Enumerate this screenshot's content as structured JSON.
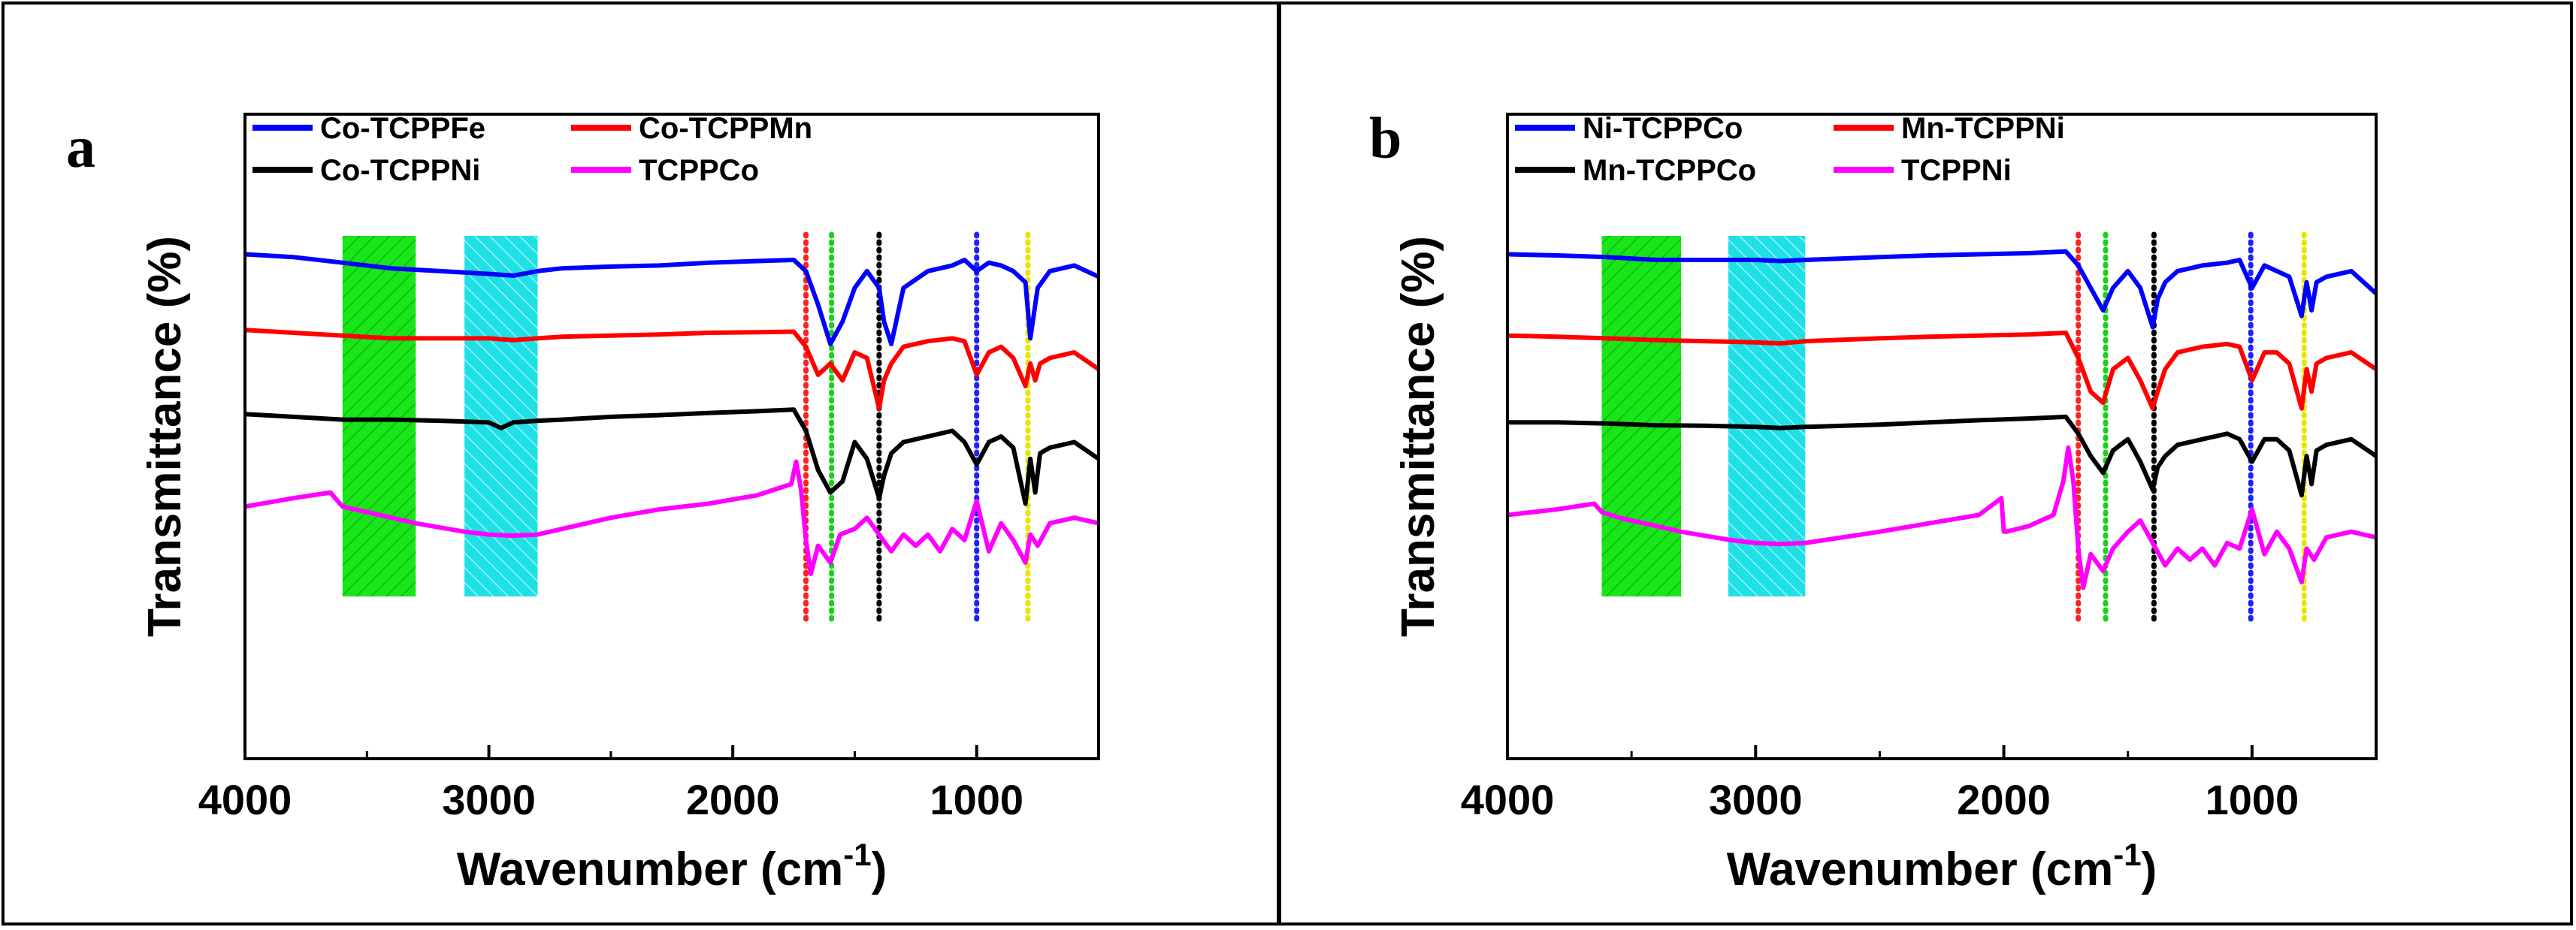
{
  "chart_data": [
    {
      "type": "line",
      "panel_label": "a",
      "xlabel": "Wavenumber (cm",
      "xlabel_sup": "-1",
      "xlabel_close": ")",
      "ylabel": "Transmittance (%)",
      "xlim": [
        4000,
        500
      ],
      "x_reversed": true,
      "xticks": [
        4000,
        3000,
        2000,
        1000
      ],
      "xtick_labels": [
        "4000",
        "3000",
        "2000",
        "1000"
      ],
      "yticks_shown": false,
      "legend_position": "top-left",
      "legend": [
        "Co-TCPPFe",
        "Co-TCPPMn",
        "Co-TCPPNi",
        "TCPPCo"
      ],
      "bands": [
        {
          "from": 3600,
          "to": 3300,
          "color": "#19e619",
          "hatched": true
        },
        {
          "from": 3100,
          "to": 2800,
          "color": "#1ee0e6",
          "hatched": true
        }
      ],
      "ref_lines": [
        {
          "x": 1700,
          "color": "#ff2020"
        },
        {
          "x": 1595,
          "color": "#19d119"
        },
        {
          "x": 1400,
          "color": "#000000"
        },
        {
          "x": 1000,
          "color": "#2020ff"
        },
        {
          "x": 790,
          "color": "#e6e600"
        }
      ],
      "series": [
        {
          "name": "Co-TCPPFe",
          "color": "#0000ff",
          "offset": 9.0,
          "x": [
            4000,
            3800,
            3600,
            3400,
            3200,
            3000,
            2900,
            2800,
            2700,
            2500,
            2300,
            2100,
            1900,
            1750,
            1700,
            1650,
            1600,
            1550,
            1500,
            1450,
            1400,
            1380,
            1350,
            1300,
            1200,
            1100,
            1050,
            1000,
            950,
            900,
            850,
            800,
            780,
            750,
            700,
            600,
            500
          ],
          "y": [
            0,
            0.05,
            0.15,
            0.25,
            0.3,
            0.35,
            0.38,
            0.3,
            0.25,
            0.22,
            0.2,
            0.15,
            0.12,
            0.1,
            0.3,
            0.9,
            1.6,
            1.2,
            0.6,
            0.3,
            0.6,
            1.2,
            1.6,
            0.6,
            0.3,
            0.2,
            0.1,
            0.3,
            0.15,
            0.2,
            0.3,
            0.5,
            1.5,
            0.6,
            0.3,
            0.2,
            0.4
          ]
        },
        {
          "name": "Co-TCPPMn",
          "color": "#ff0000",
          "offset": 7.65,
          "x": [
            4000,
            3800,
            3600,
            3400,
            3200,
            3000,
            2900,
            2800,
            2700,
            2500,
            2300,
            2100,
            1900,
            1750,
            1700,
            1650,
            1600,
            1550,
            1500,
            1450,
            1400,
            1380,
            1350,
            1300,
            1200,
            1100,
            1050,
            1000,
            950,
            900,
            850,
            800,
            780,
            760,
            740,
            700,
            600,
            500
          ],
          "y": [
            0,
            0.05,
            0.1,
            0.15,
            0.15,
            0.15,
            0.18,
            0.15,
            0.12,
            0.1,
            0.08,
            0.05,
            0.04,
            0.03,
            0.3,
            0.8,
            0.6,
            0.9,
            0.4,
            0.5,
            1.4,
            0.9,
            0.6,
            0.3,
            0.2,
            0.15,
            0.2,
            0.8,
            0.4,
            0.3,
            0.5,
            1.0,
            0.6,
            0.9,
            0.6,
            0.5,
            0.4,
            0.7
          ]
        },
        {
          "name": "Co-TCPPNi",
          "color": "#000000",
          "offset": 6.15,
          "x": [
            4000,
            3800,
            3600,
            3400,
            3200,
            3000,
            2950,
            2900,
            2800,
            2700,
            2500,
            2300,
            2100,
            1900,
            1750,
            1700,
            1650,
            1600,
            1550,
            1500,
            1450,
            1400,
            1380,
            1350,
            1300,
            1200,
            1100,
            1050,
            1000,
            950,
            900,
            850,
            800,
            780,
            760,
            740,
            700,
            600,
            500
          ],
          "y": [
            0,
            0.05,
            0.1,
            0.1,
            0.12,
            0.15,
            0.25,
            0.15,
            0.12,
            0.1,
            0.05,
            0.02,
            -0.02,
            -0.05,
            -0.08,
            0.3,
            1.0,
            1.4,
            1.2,
            0.5,
            0.8,
            1.5,
            1.1,
            0.7,
            0.5,
            0.4,
            0.3,
            0.5,
            0.9,
            0.5,
            0.4,
            0.6,
            1.6,
            0.8,
            1.4,
            0.7,
            0.6,
            0.5,
            0.8
          ]
        },
        {
          "name": "TCPPCo",
          "color": "#ff00ff",
          "offset": 4.5,
          "x": [
            4000,
            3800,
            3650,
            3600,
            3500,
            3300,
            3100,
            3000,
            2900,
            2800,
            2700,
            2500,
            2300,
            2100,
            1900,
            1760,
            1740,
            1720,
            1700,
            1680,
            1650,
            1600,
            1560,
            1500,
            1450,
            1400,
            1350,
            1300,
            1250,
            1200,
            1150,
            1100,
            1050,
            1000,
            950,
            900,
            850,
            800,
            780,
            750,
            700,
            600,
            500
          ],
          "y": [
            0,
            -0.15,
            -0.25,
            0.0,
            0.1,
            0.3,
            0.45,
            0.5,
            0.52,
            0.5,
            0.4,
            0.2,
            0.05,
            -0.05,
            -0.2,
            -0.4,
            -0.8,
            -0.3,
            0.6,
            1.2,
            0.7,
            1.0,
            0.5,
            0.4,
            0.2,
            0.5,
            0.8,
            0.5,
            0.7,
            0.5,
            0.8,
            0.4,
            0.6,
            -0.1,
            0.8,
            0.3,
            0.6,
            1.0,
            0.5,
            0.7,
            0.3,
            0.2,
            0.3
          ]
        }
      ]
    },
    {
      "type": "line",
      "panel_label": "b",
      "xlabel": "Wavenumber (cm",
      "xlabel_sup": "-1",
      "xlabel_close": ")",
      "ylabel": "Transmittance (%)",
      "xlim": [
        4000,
        500
      ],
      "x_reversed": true,
      "xticks": [
        4000,
        3000,
        2000,
        1000
      ],
      "xtick_labels": [
        "4000",
        "3000",
        "2000",
        "1000"
      ],
      "yticks_shown": false,
      "legend_position": "top-left",
      "legend": [
        "Ni-TCPPCo",
        "Mn-TCPPNi",
        "Mn-TCPPCo",
        "TCPPNi"
      ],
      "bands": [
        {
          "from": 3620,
          "to": 3300,
          "color": "#19e619",
          "hatched": true
        },
        {
          "from": 3110,
          "to": 2800,
          "color": "#1ee0e6",
          "hatched": true
        }
      ],
      "ref_lines": [
        {
          "x": 1700,
          "color": "#ff2020"
        },
        {
          "x": 1590,
          "color": "#19d119"
        },
        {
          "x": 1395,
          "color": "#000000"
        },
        {
          "x": 1005,
          "color": "#2020ff"
        },
        {
          "x": 790,
          "color": "#e6e600"
        }
      ],
      "series": [
        {
          "name": "Ni-TCPPCo",
          "color": "#0000ff",
          "offset": 9.0,
          "x": [
            4000,
            3800,
            3600,
            3400,
            3200,
            3000,
            2900,
            2800,
            2500,
            2300,
            2100,
            1900,
            1750,
            1700,
            1650,
            1600,
            1560,
            1500,
            1450,
            1400,
            1380,
            1350,
            1300,
            1200,
            1100,
            1050,
            1000,
            950,
            900,
            850,
            800,
            780,
            760,
            740,
            700,
            600,
            500
          ],
          "y": [
            0,
            0.02,
            0.05,
            0.1,
            0.1,
            0.1,
            0.12,
            0.1,
            0.05,
            0.02,
            0.0,
            -0.02,
            -0.05,
            0.2,
            0.6,
            1.0,
            0.6,
            0.3,
            0.6,
            1.3,
            0.8,
            0.5,
            0.3,
            0.2,
            0.15,
            0.1,
            0.6,
            0.2,
            0.3,
            0.4,
            1.1,
            0.5,
            1.0,
            0.5,
            0.4,
            0.3,
            0.7
          ]
        },
        {
          "name": "Mn-TCPPNi",
          "color": "#ff0000",
          "offset": 7.55,
          "x": [
            4000,
            3800,
            3600,
            3400,
            3200,
            3000,
            2900,
            2800,
            2500,
            2300,
            2100,
            1900,
            1750,
            1700,
            1650,
            1600,
            1560,
            1500,
            1450,
            1400,
            1380,
            1350,
            1300,
            1200,
            1100,
            1050,
            1000,
            950,
            900,
            850,
            800,
            780,
            760,
            740,
            700,
            600,
            500
          ],
          "y": [
            0,
            0.02,
            0.05,
            0.08,
            0.1,
            0.12,
            0.14,
            0.1,
            0.05,
            0.02,
            0.0,
            -0.02,
            -0.05,
            0.4,
            1.0,
            1.2,
            0.6,
            0.4,
            0.8,
            1.3,
            1.0,
            0.6,
            0.3,
            0.2,
            0.15,
            0.2,
            0.8,
            0.3,
            0.3,
            0.5,
            1.3,
            0.6,
            1.0,
            0.5,
            0.4,
            0.3,
            0.6
          ]
        },
        {
          "name": "Mn-TCPPCo",
          "color": "#000000",
          "offset": 6.0,
          "x": [
            4000,
            3800,
            3600,
            3400,
            3200,
            3000,
            2900,
            2800,
            2500,
            2300,
            2100,
            1900,
            1750,
            1700,
            1650,
            1600,
            1560,
            1500,
            1450,
            1400,
            1380,
            1350,
            1300,
            1200,
            1100,
            1050,
            1000,
            950,
            900,
            850,
            800,
            780,
            760,
            740,
            700,
            600,
            500
          ],
          "y": [
            0,
            0.0,
            0.02,
            0.05,
            0.06,
            0.08,
            0.1,
            0.08,
            0.04,
            0.0,
            -0.04,
            -0.07,
            -0.1,
            0.2,
            0.6,
            0.9,
            0.5,
            0.3,
            0.7,
            1.2,
            0.8,
            0.6,
            0.4,
            0.3,
            0.2,
            0.3,
            0.7,
            0.3,
            0.3,
            0.5,
            1.3,
            0.6,
            1.1,
            0.5,
            0.4,
            0.3,
            0.6
          ]
        },
        {
          "name": "TCPPNi",
          "color": "#ff00ff",
          "offset": 4.35,
          "x": [
            4000,
            3800,
            3650,
            3620,
            3550,
            3450,
            3300,
            3100,
            3000,
            2900,
            2800,
            2500,
            2300,
            2100,
            2010,
            2000,
            1990,
            1900,
            1800,
            1760,
            1740,
            1720,
            1700,
            1680,
            1650,
            1600,
            1560,
            1500,
            1450,
            1400,
            1350,
            1300,
            1250,
            1200,
            1150,
            1100,
            1050,
            1000,
            950,
            900,
            850,
            800,
            780,
            750,
            700,
            600,
            500
          ],
          "y": [
            0,
            -0.1,
            -0.2,
            -0.05,
            0.05,
            0.15,
            0.3,
            0.45,
            0.5,
            0.52,
            0.5,
            0.3,
            0.15,
            0.0,
            -0.3,
            0.3,
            0.3,
            0.2,
            0.0,
            -0.6,
            -1.2,
            -0.6,
            0.6,
            1.3,
            0.7,
            1.0,
            0.6,
            0.3,
            0.1,
            0.5,
            0.9,
            0.6,
            0.8,
            0.6,
            0.9,
            0.5,
            0.6,
            -0.1,
            0.7,
            0.3,
            0.6,
            1.2,
            0.6,
            0.8,
            0.4,
            0.3,
            0.4
          ]
        }
      ]
    }
  ]
}
